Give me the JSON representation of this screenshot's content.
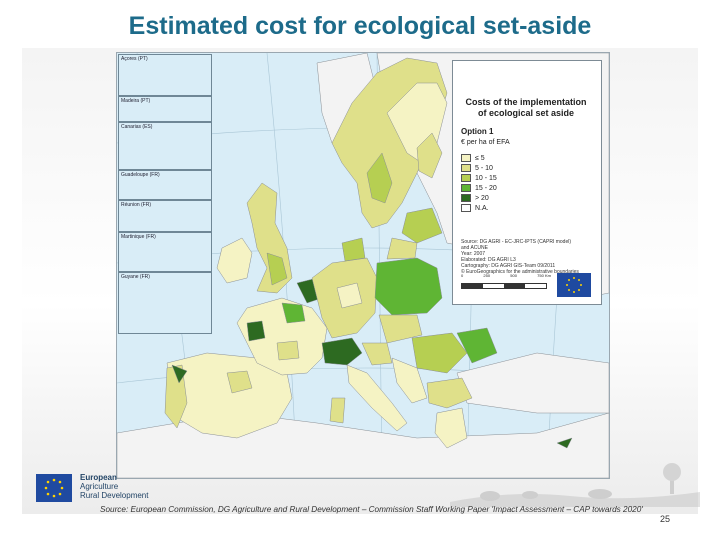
{
  "slide": {
    "title": "Estimated cost for ecological set-aside",
    "source": "Source: European Commission, DG Agriculture and Rural Development – Commission Staff Working Paper 'Impact Assessment – CAP towards 2020'",
    "page_number": "25"
  },
  "legend": {
    "title_line1": "Costs of the implementation",
    "title_line2": "of ecological set aside",
    "option": "Option 1",
    "unit": "€ per ha of EFA",
    "items": [
      {
        "label": "≤ 5",
        "color": "#f5f3c4"
      },
      {
        "label": "5 - 10",
        "color": "#dfe08a"
      },
      {
        "label": "10 - 15",
        "color": "#b6cf52"
      },
      {
        "label": "15 - 20",
        "color": "#5fb534"
      },
      {
        "label": "> 20",
        "color": "#2d6a21"
      },
      {
        "label": "N.A.",
        "color": "#ffffff"
      }
    ],
    "source_line1": "Source: DG AGRI - EC-JRC-IPTS (CAPRI model)",
    "source_line2": "and ACUNE",
    "source_line3": "Year: 2007",
    "source_line4": "Elaborated: DG AGRI L3",
    "source_line5": "Cartography: DG AGRI GIS-Team 09/2011",
    "source_line6": "© EuroGeographics for the administrative boundaries",
    "scale_0": "0",
    "scale_1": "250",
    "scale_2": "500",
    "scale_3": "750 Km"
  },
  "insets": [
    {
      "label": "Açores (PT)"
    },
    {
      "label": "Madeira (PT)"
    },
    {
      "label": "Canarias (ES)"
    },
    {
      "label": "Guadeloupe (FR)"
    },
    {
      "label": "Réunion (FR)"
    },
    {
      "label": "Martinique (FR)"
    },
    {
      "label": "Guyane (FR)"
    }
  ],
  "eu_block": {
    "line1": "European",
    "line2": "Agriculture",
    "line3": "Rural Development"
  },
  "map": {
    "sea_color": "#d9edf7",
    "non_eu_color": "#f3f3f3",
    "border_color": "#8a8f94"
  }
}
